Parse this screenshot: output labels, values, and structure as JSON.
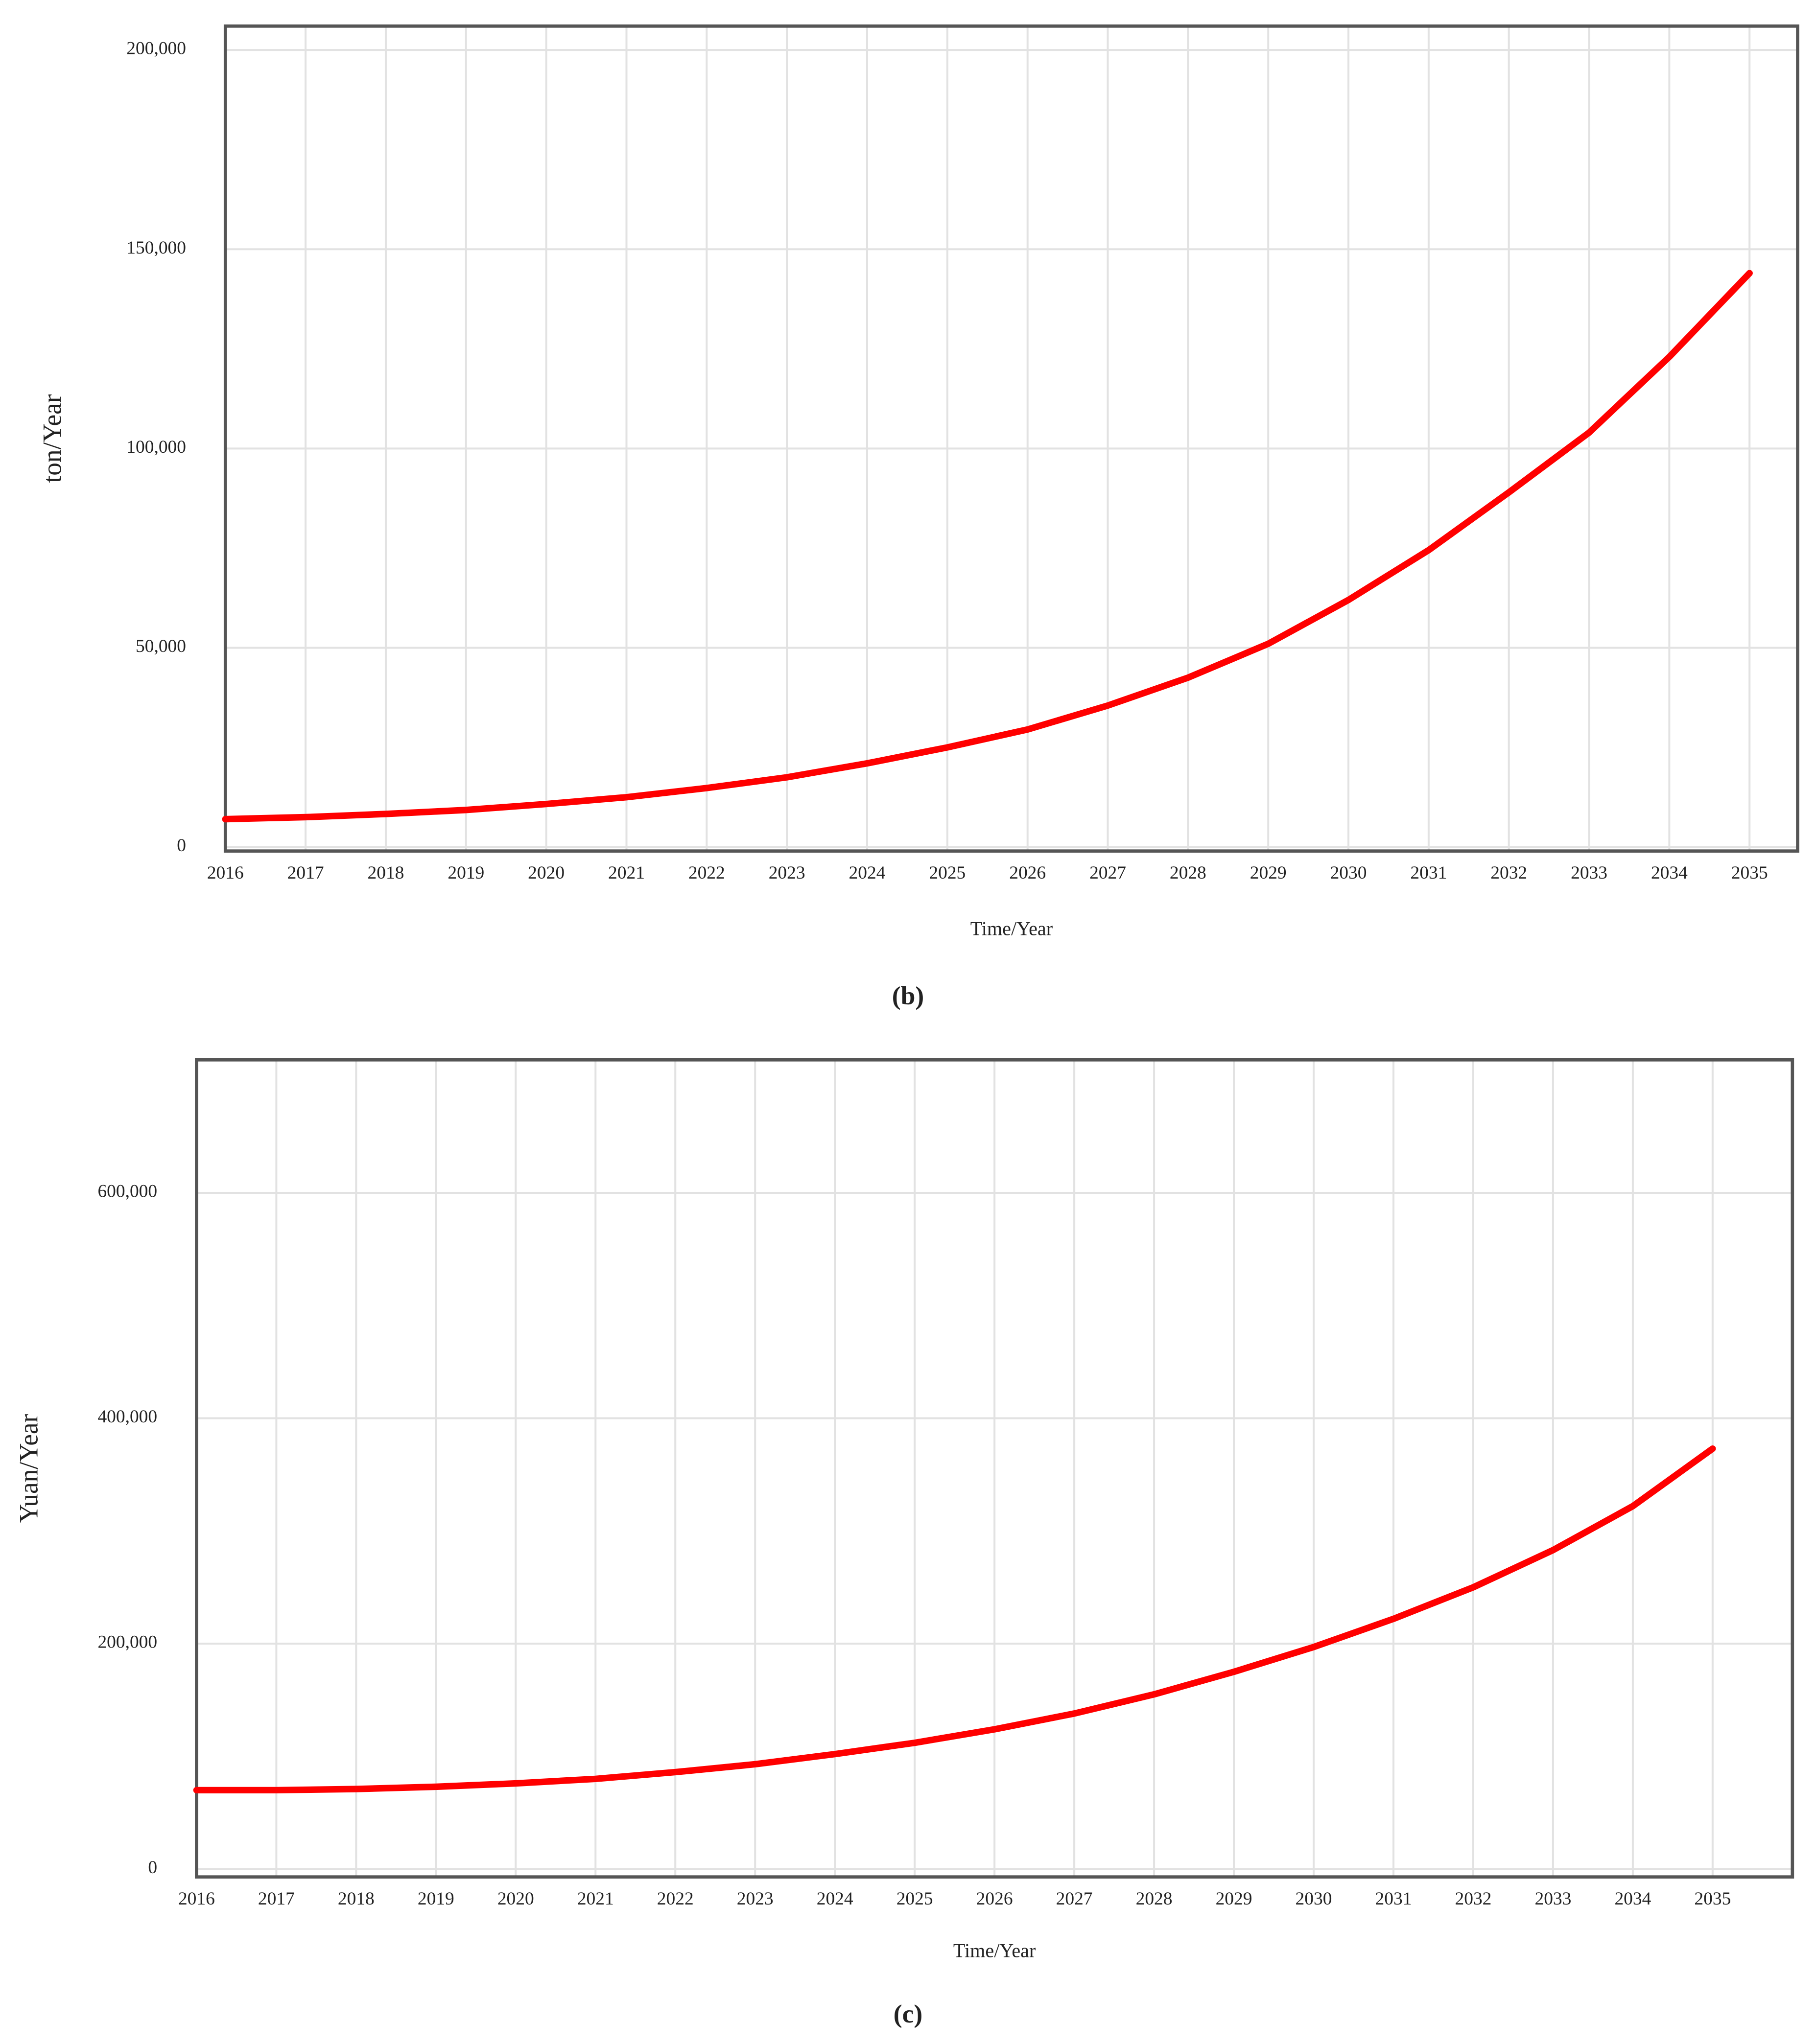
{
  "chart_data": [
    {
      "type": "line",
      "ylabel": "ton/Year",
      "xlabel": "Time/Year",
      "caption": "(b)",
      "color": "#ff0000",
      "grid": true,
      "x": [
        2016,
        2017,
        2018,
        2019,
        2020,
        2021,
        2022,
        2023,
        2024,
        2025,
        2026,
        2027,
        2028,
        2029,
        2030,
        2031,
        2032,
        2033,
        2034,
        2035
      ],
      "values": [
        7000,
        7500,
        8300,
        9300,
        10800,
        12500,
        14800,
        17500,
        21000,
        25000,
        29500,
        35500,
        42500,
        51000,
        62000,
        74500,
        89000,
        104000,
        123000,
        144000
      ],
      "xlim": [
        2016,
        2035.6
      ],
      "xticks": [
        2016,
        2017,
        2018,
        2019,
        2020,
        2021,
        2022,
        2023,
        2024,
        2025,
        2026,
        2027,
        2028,
        2029,
        2030,
        2031,
        2032,
        2033,
        2034,
        2035
      ],
      "ylim": [
        -1000,
        206000
      ],
      "yticks": [
        0,
        {
          "value": 50000,
          "label": "50,000"
        },
        {
          "value": 100000,
          "label": "100,000"
        },
        {
          "value": 150000,
          "label": "150,000"
        },
        {
          "value": 200000,
          "label": "200,000"
        }
      ]
    },
    {
      "type": "line",
      "ylabel": "Yuan/Year",
      "xlabel": "Time/Year",
      "caption": "(c)",
      "color": "#ff0000",
      "grid": true,
      "x": [
        2016,
        2017,
        2018,
        2019,
        2020,
        2021,
        2022,
        2023,
        2024,
        2025,
        2026,
        2027,
        2028,
        2029,
        2030,
        2031,
        2032,
        2033,
        2034,
        2035
      ],
      "values": [
        70000,
        70000,
        71000,
        73000,
        76000,
        80000,
        86000,
        93000,
        102000,
        112000,
        124000,
        138000,
        155000,
        175000,
        197000,
        222000,
        250000,
        283000,
        322000,
        373000
      ],
      "xlim": [
        2016,
        2036
      ],
      "xticks": [
        2016,
        2017,
        2018,
        2019,
        2020,
        2021,
        2022,
        2023,
        2024,
        2025,
        2026,
        2027,
        2028,
        2029,
        2030,
        2031,
        2032,
        2033,
        2034,
        2035
      ],
      "ylim": [
        -7000,
        718000
      ],
      "yticks": [
        0,
        {
          "value": 200000,
          "label": "200,000"
        },
        {
          "value": 400000,
          "label": "400,000"
        },
        {
          "value": 600000,
          "label": "600,000"
        }
      ]
    }
  ]
}
